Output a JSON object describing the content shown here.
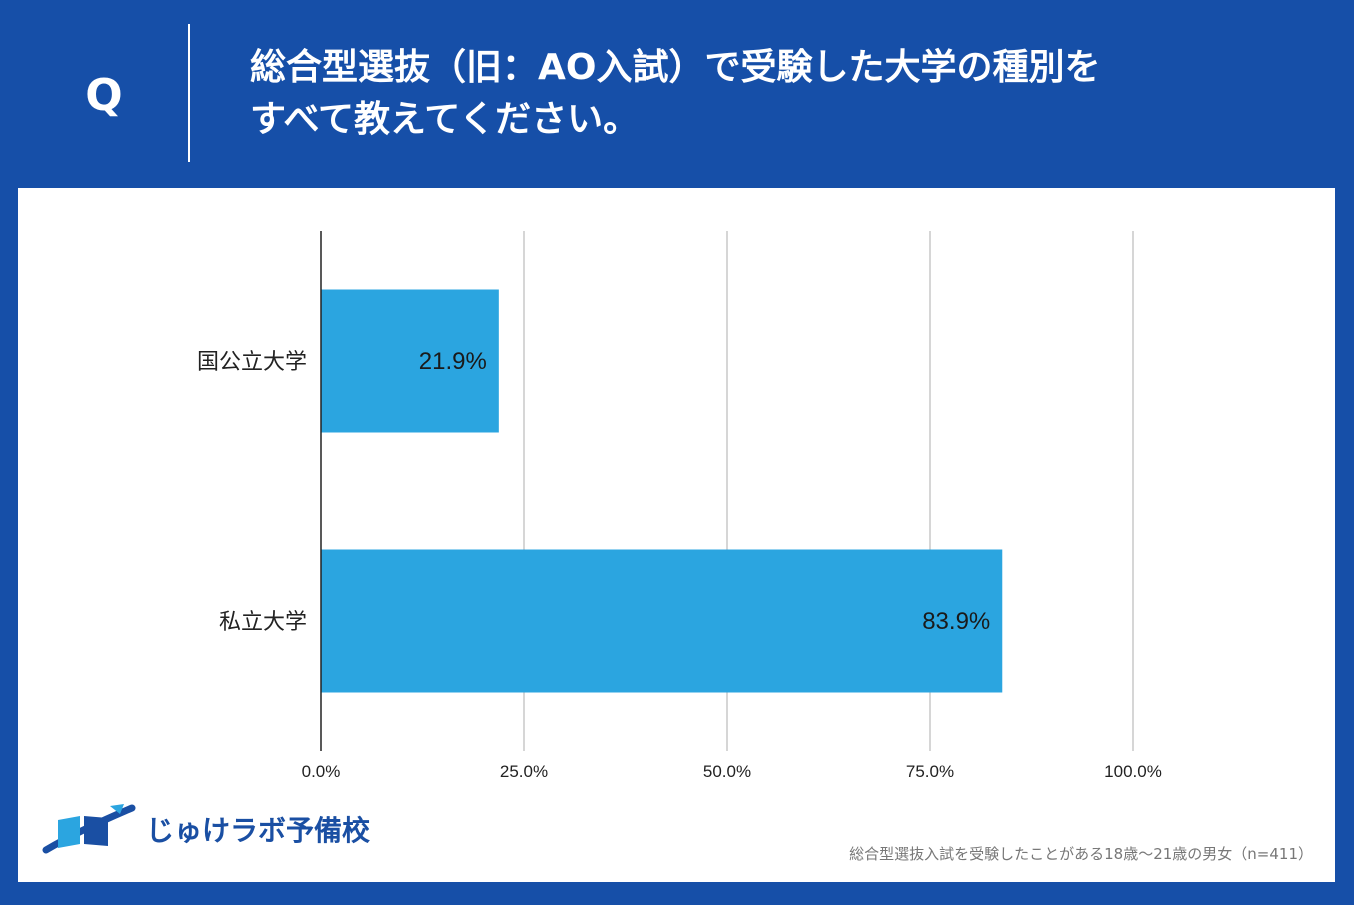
{
  "header": {
    "q_mark": "Q",
    "question": "総合型選抜（旧：AO入試）で受験した大学の種別を\nすべて教えてください。"
  },
  "colors": {
    "background": "#164fa8",
    "bar": "#2ba5e0",
    "panel": "#ffffff"
  },
  "chart_data": {
    "type": "bar",
    "orientation": "horizontal",
    "categories": [
      "国公立大学",
      "私立大学"
    ],
    "values": [
      21.9,
      83.9
    ],
    "value_labels": [
      "21.9%",
      "83.9%"
    ],
    "xlim": [
      0,
      100
    ],
    "x_ticks": [
      0,
      25,
      50,
      75,
      100
    ],
    "x_tick_labels": [
      "0.0%",
      "25.0%",
      "50.0%",
      "75.0%",
      "100.0%"
    ],
    "grid": true,
    "title": "",
    "xlabel": "",
    "ylabel": ""
  },
  "logo": {
    "text": "じゅけラボ予備校",
    "icon": "open-book-icon"
  },
  "footnote": "総合型選抜入試を受験したことがある18歳〜21歳の男女（n=411）"
}
